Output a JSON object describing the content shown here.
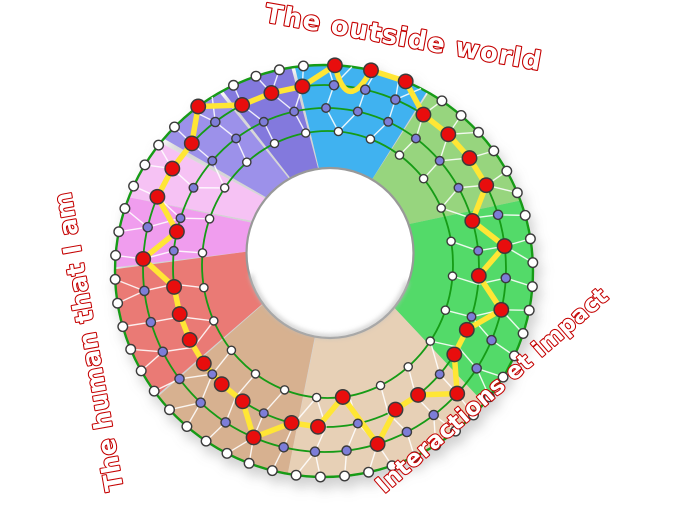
{
  "labels": {
    "top": "The outside world",
    "right": "Interactions et impact",
    "left": "The human that I am"
  },
  "palette": {
    "label_outline": "#c40000",
    "label_fill": "#ffffff",
    "ring_stroke": "#149b14",
    "node_outline": "#3a3a3a",
    "node_white": "#ffffff",
    "node_purple": "#7d7dd8",
    "node_red": "#e81111",
    "path_yellow": "#ffe636",
    "connector": "#ffffff",
    "hole_fill": "#ffffff",
    "hole_edge": "#999999",
    "hole_inner_shadow": "#bdbdbd"
  },
  "wheel": {
    "sectors": [
      {
        "name": "blue",
        "color": "#3fb2f0",
        "start": 352,
        "end": 390
      },
      {
        "name": "green-light",
        "color": "#97d57e",
        "start": 30,
        "end": 70
      },
      {
        "name": "green-bright",
        "color": "#53da69",
        "start": 70,
        "end": 130
      },
      {
        "name": "tan-light",
        "color": "#e7d0b6",
        "start": 130,
        "end": 190
      },
      {
        "name": "tan-dark",
        "color": "#d7b190",
        "start": 190,
        "end": 233
      },
      {
        "name": "red",
        "color": "#ea7a74",
        "start": 233,
        "end": 271
      },
      {
        "name": "pink-dark",
        "color": "#f09dee",
        "start": 271,
        "end": 291
      },
      {
        "name": "pink-light",
        "color": "#f6c2f4",
        "start": 291,
        "end": 310
      },
      {
        "name": "purple-light",
        "color": "#9c91ea",
        "start": 310,
        "end": 331
      },
      {
        "name": "purple-dark",
        "color": "#8379dd",
        "start": 331,
        "end": 352
      }
    ],
    "rings": {
      "scales": [
        1.0,
        0.868,
        0.73,
        0.6
      ],
      "counts": [
        54,
        36,
        30,
        24
      ],
      "offsets": [
        1,
        3,
        0,
        5
      ],
      "node_colors": [
        "white",
        "purple",
        "purple",
        "white"
      ]
    },
    "hole_scale": 0.4,
    "profile": {
      "step_deg": 10,
      "offset_deg": 3,
      "levels": [
        1,
        1,
        1,
        2,
        2,
        2,
        2,
        3,
        2,
        3,
        2,
        3,
        3,
        2,
        3,
        3,
        2,
        4,
        3,
        3,
        2,
        3,
        3,
        3,
        3,
        3,
        3,
        2,
        3,
        2,
        2,
        2,
        1,
        2,
        2,
        2
      ],
      "dip_after_index": 0,
      "dip_depth_scale": 0.7
    }
  }
}
